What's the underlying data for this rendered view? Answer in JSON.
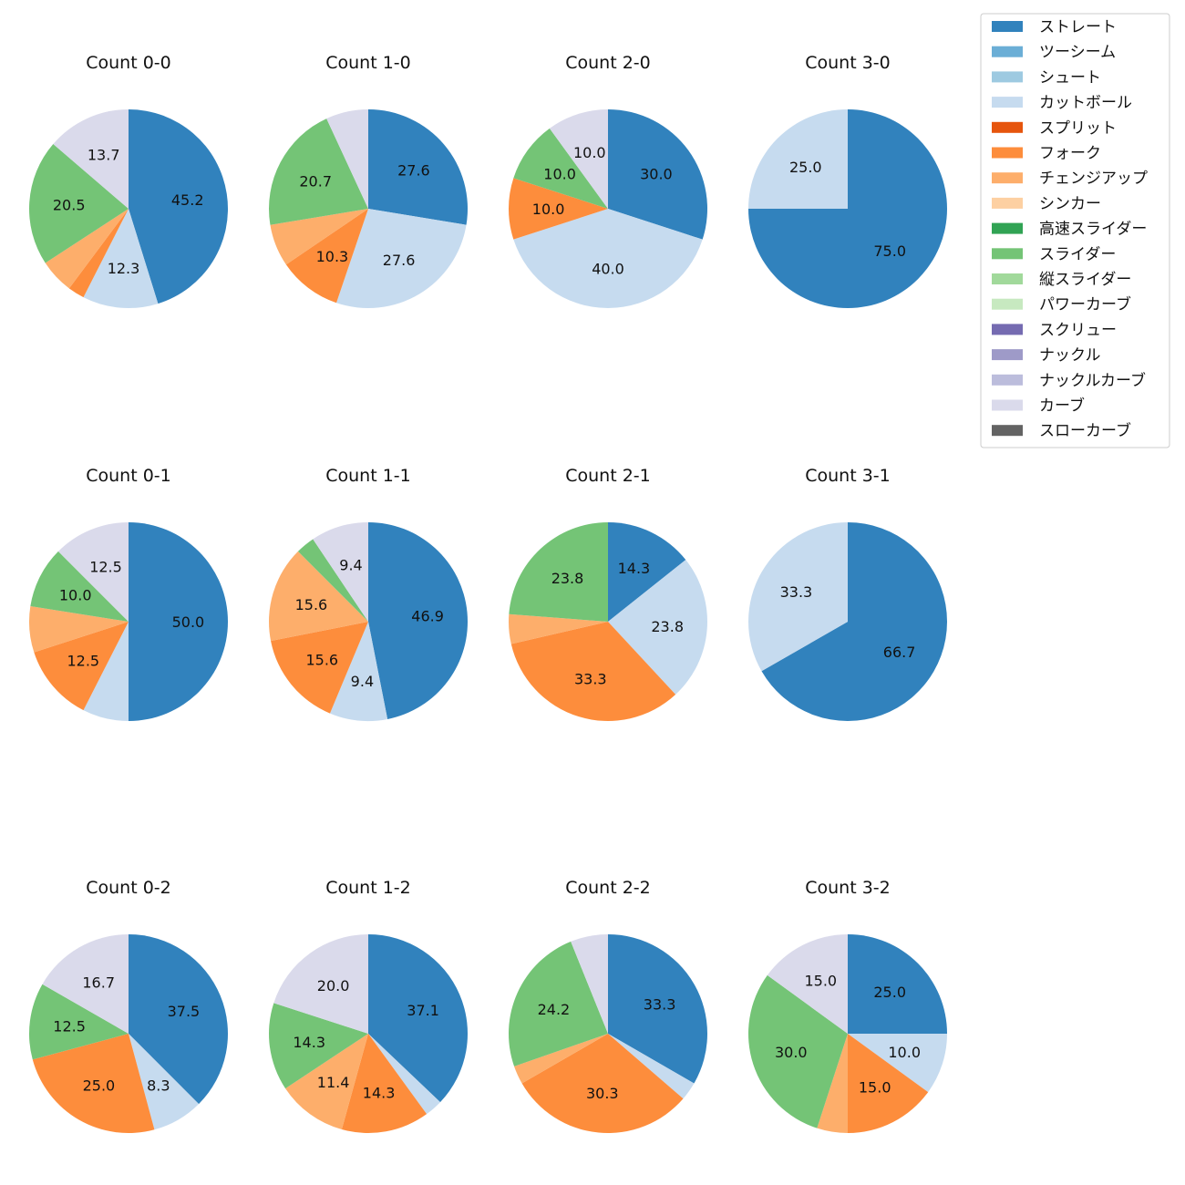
{
  "legend": [
    {
      "name": "ストレート",
      "color": "#3182bd"
    },
    {
      "name": "ツーシーム",
      "color": "#6baed6"
    },
    {
      "name": "シュート",
      "color": "#9ecae1"
    },
    {
      "name": "カットボール",
      "color": "#c6dbef"
    },
    {
      "name": "スプリット",
      "color": "#e6550d"
    },
    {
      "name": "フォーク",
      "color": "#fd8d3c"
    },
    {
      "name": "チェンジアップ",
      "color": "#fdae6b"
    },
    {
      "name": "シンカー",
      "color": "#fdd0a2"
    },
    {
      "name": "高速スライダー",
      "color": "#31a354"
    },
    {
      "name": "スライダー",
      "color": "#74c476"
    },
    {
      "name": "縦スライダー",
      "color": "#a1d99b"
    },
    {
      "name": "パワーカーブ",
      "color": "#c7e9c0"
    },
    {
      "name": "スクリュー",
      "color": "#756bb1"
    },
    {
      "name": "ナックル",
      "color": "#9e9ac8"
    },
    {
      "name": "ナックルカーブ",
      "color": "#bcbddc"
    },
    {
      "name": "カーブ",
      "color": "#dadaeb"
    },
    {
      "name": "スローカーブ",
      "color": "#636363"
    }
  ],
  "chart_data": [
    {
      "type": "pie",
      "title": "Count 0-0",
      "slices": [
        {
          "name": "ストレート",
          "value": 45.2,
          "label": "45.2"
        },
        {
          "name": "カットボール",
          "value": 12.3,
          "label": "12.3"
        },
        {
          "name": "フォーク",
          "value": 2.7,
          "label": ""
        },
        {
          "name": "チェンジアップ",
          "value": 5.6,
          "label": ""
        },
        {
          "name": "スライダー",
          "value": 20.5,
          "label": "20.5"
        },
        {
          "name": "カーブ",
          "value": 13.7,
          "label": "13.7"
        }
      ]
    },
    {
      "type": "pie",
      "title": "Count 1-0",
      "slices": [
        {
          "name": "ストレート",
          "value": 27.6,
          "label": "27.6"
        },
        {
          "name": "カットボール",
          "value": 27.6,
          "label": "27.6"
        },
        {
          "name": "フォーク",
          "value": 10.3,
          "label": "10.3"
        },
        {
          "name": "チェンジアップ",
          "value": 6.9,
          "label": ""
        },
        {
          "name": "スライダー",
          "value": 20.7,
          "label": "20.7"
        },
        {
          "name": "カーブ",
          "value": 6.9,
          "label": ""
        }
      ]
    },
    {
      "type": "pie",
      "title": "Count 2-0",
      "slices": [
        {
          "name": "ストレート",
          "value": 30.0,
          "label": "30.0"
        },
        {
          "name": "カットボール",
          "value": 40.0,
          "label": "40.0"
        },
        {
          "name": "フォーク",
          "value": 10.0,
          "label": "10.0"
        },
        {
          "name": "スライダー",
          "value": 10.0,
          "label": "10.0"
        },
        {
          "name": "カーブ",
          "value": 10.0,
          "label": "10.0"
        }
      ]
    },
    {
      "type": "pie",
      "title": "Count 3-0",
      "slices": [
        {
          "name": "ストレート",
          "value": 75.0,
          "label": "75.0"
        },
        {
          "name": "カットボール",
          "value": 25.0,
          "label": "25.0"
        }
      ]
    },
    {
      "type": "pie",
      "title": "Count 0-1",
      "slices": [
        {
          "name": "ストレート",
          "value": 50.0,
          "label": "50.0"
        },
        {
          "name": "カットボール",
          "value": 7.5,
          "label": ""
        },
        {
          "name": "フォーク",
          "value": 12.5,
          "label": "12.5"
        },
        {
          "name": "チェンジアップ",
          "value": 7.5,
          "label": ""
        },
        {
          "name": "スライダー",
          "value": 10.0,
          "label": "10.0"
        },
        {
          "name": "カーブ",
          "value": 12.5,
          "label": "12.5"
        }
      ]
    },
    {
      "type": "pie",
      "title": "Count 1-1",
      "slices": [
        {
          "name": "ストレート",
          "value": 46.9,
          "label": "46.9"
        },
        {
          "name": "カットボール",
          "value": 9.4,
          "label": "9.4"
        },
        {
          "name": "フォーク",
          "value": 15.6,
          "label": "15.6"
        },
        {
          "name": "チェンジアップ",
          "value": 15.6,
          "label": "15.6"
        },
        {
          "name": "スライダー",
          "value": 3.1,
          "label": ""
        },
        {
          "name": "カーブ",
          "value": 9.4,
          "label": "9.4"
        }
      ]
    },
    {
      "type": "pie",
      "title": "Count 2-1",
      "slices": [
        {
          "name": "ストレート",
          "value": 14.3,
          "label": "14.3"
        },
        {
          "name": "カットボール",
          "value": 23.8,
          "label": "23.8"
        },
        {
          "name": "フォーク",
          "value": 33.3,
          "label": "33.3"
        },
        {
          "name": "チェンジアップ",
          "value": 4.8,
          "label": ""
        },
        {
          "name": "スライダー",
          "value": 23.8,
          "label": "23.8"
        }
      ]
    },
    {
      "type": "pie",
      "title": "Count 3-1",
      "slices": [
        {
          "name": "ストレート",
          "value": 66.7,
          "label": "66.7"
        },
        {
          "name": "カットボール",
          "value": 33.3,
          "label": "33.3"
        }
      ]
    },
    {
      "type": "pie",
      "title": "Count 0-2",
      "slices": [
        {
          "name": "ストレート",
          "value": 37.5,
          "label": "37.5"
        },
        {
          "name": "カットボール",
          "value": 8.3,
          "label": "8.3"
        },
        {
          "name": "フォーク",
          "value": 25.0,
          "label": "25.0"
        },
        {
          "name": "スライダー",
          "value": 12.5,
          "label": "12.5"
        },
        {
          "name": "カーブ",
          "value": 16.7,
          "label": "16.7"
        }
      ]
    },
    {
      "type": "pie",
      "title": "Count 1-2",
      "slices": [
        {
          "name": "ストレート",
          "value": 37.1,
          "label": "37.1"
        },
        {
          "name": "カットボール",
          "value": 2.9,
          "label": ""
        },
        {
          "name": "フォーク",
          "value": 14.3,
          "label": "14.3"
        },
        {
          "name": "チェンジアップ",
          "value": 11.4,
          "label": "11.4"
        },
        {
          "name": "スライダー",
          "value": 14.3,
          "label": "14.3"
        },
        {
          "name": "カーブ",
          "value": 20.0,
          "label": "20.0"
        }
      ]
    },
    {
      "type": "pie",
      "title": "Count 2-2",
      "slices": [
        {
          "name": "ストレート",
          "value": 33.3,
          "label": "33.3"
        },
        {
          "name": "カットボール",
          "value": 3.0,
          "label": ""
        },
        {
          "name": "フォーク",
          "value": 30.3,
          "label": "30.3"
        },
        {
          "name": "チェンジアップ",
          "value": 3.0,
          "label": ""
        },
        {
          "name": "スライダー",
          "value": 24.2,
          "label": "24.2"
        },
        {
          "name": "カーブ",
          "value": 6.1,
          "label": ""
        }
      ]
    },
    {
      "type": "pie",
      "title": "Count 3-2",
      "slices": [
        {
          "name": "ストレート",
          "value": 25.0,
          "label": "25.0"
        },
        {
          "name": "カットボール",
          "value": 10.0,
          "label": "10.0"
        },
        {
          "name": "フォーク",
          "value": 15.0,
          "label": "15.0"
        },
        {
          "name": "チェンジアップ",
          "value": 5.0,
          "label": ""
        },
        {
          "name": "スライダー",
          "value": 30.0,
          "label": "30.0"
        },
        {
          "name": "カーブ",
          "value": 15.0,
          "label": "15.0"
        }
      ]
    }
  ]
}
